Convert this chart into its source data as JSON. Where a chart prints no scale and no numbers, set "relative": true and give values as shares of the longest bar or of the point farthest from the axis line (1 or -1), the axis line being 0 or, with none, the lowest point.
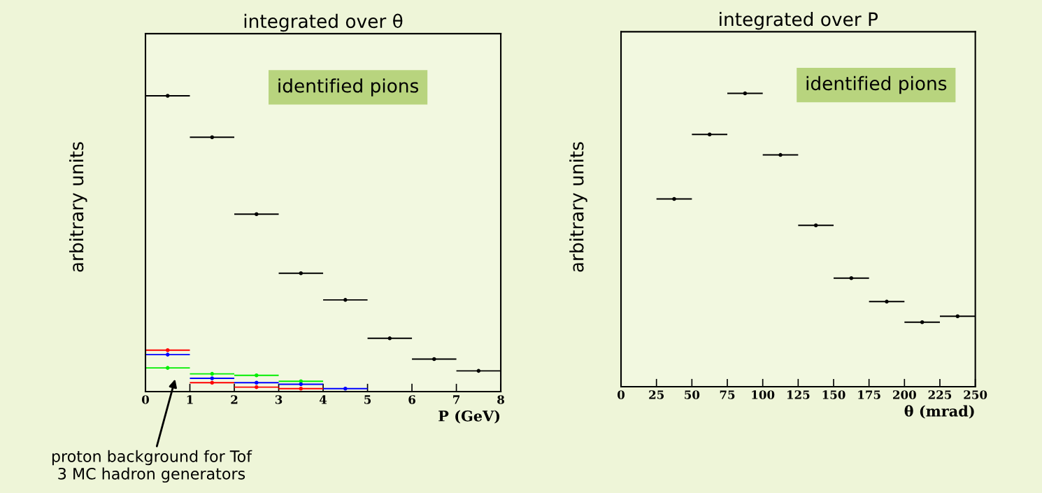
{
  "chart_data": [
    {
      "type": "scatter",
      "title": "integrated over θ",
      "xlabel": "P (GeV)",
      "ylabel": "arbitrary units",
      "relative": true,
      "x": [
        0.5,
        1.5,
        2.5,
        3.5,
        4.5,
        5.5,
        6.5,
        7.5
      ],
      "xlim": [
        0,
        8
      ],
      "xticks": [
        0,
        1,
        2,
        3,
        4,
        5,
        6,
        7,
        8
      ],
      "tick_labels": "x",
      "marker": "circle",
      "grid": false,
      "series": [
        {
          "color": "#000000",
          "values": [
            1,
            0.86,
            0.6,
            0.4,
            0.31,
            0.18,
            0.11,
            0.07
          ],
          "xerrors": [
            0.5,
            0.5,
            0.5,
            0.5,
            0.5,
            0.5,
            0.5,
            0.5
          ]
        },
        {
          "color": "#00ee00",
          "values": [
            0.08,
            0.06,
            0.055,
            0.035,
            null,
            null,
            null,
            null
          ],
          "xerrors": [
            0.5,
            0.5,
            0.5,
            0.5,
            null,
            null,
            null,
            null
          ]
        },
        {
          "color": "#0000ff",
          "values": [
            0.125,
            0.045,
            0.03,
            0.025,
            0.01,
            null,
            null,
            null
          ],
          "xerrors": [
            0.5,
            0.5,
            0.5,
            0.5,
            0.5,
            null,
            null,
            null
          ]
        },
        {
          "color": "#ff0000",
          "values": [
            0.14,
            0.03,
            0.015,
            0.01,
            null,
            null,
            null,
            null
          ],
          "xerrors": [
            0.5,
            0.5,
            0.5,
            0.5,
            null,
            null,
            null,
            null
          ]
        }
      ],
      "annotations": [
        "identified pions",
        "proton background for Tof\n3 MC hadron generators"
      ]
    },
    {
      "type": "scatter",
      "title": "integrated over P",
      "xlabel": "θ (mrad)",
      "ylabel": "arbitrary units",
      "relative": true,
      "x": [
        37.5,
        62.5,
        87.5,
        112.5,
        137.5,
        162.5,
        187.5,
        212.5,
        237.5
      ],
      "xlim": [
        0,
        250
      ],
      "xticks": [
        0,
        25,
        50,
        75,
        100,
        125,
        150,
        175,
        200,
        225,
        250
      ],
      "tick_labels": "x",
      "marker": "circle",
      "grid": false,
      "series": [
        {
          "color": "#000000",
          "values": [
            0.64,
            0.86,
            1,
            0.79,
            0.55,
            0.37,
            0.29,
            0.22,
            0.24
          ],
          "xerrors": [
            12.5,
            12.5,
            12.5,
            12.5,
            12.5,
            12.5,
            12.5,
            12.5,
            12.5
          ]
        }
      ],
      "annotations": [
        "identified pions"
      ]
    }
  ]
}
